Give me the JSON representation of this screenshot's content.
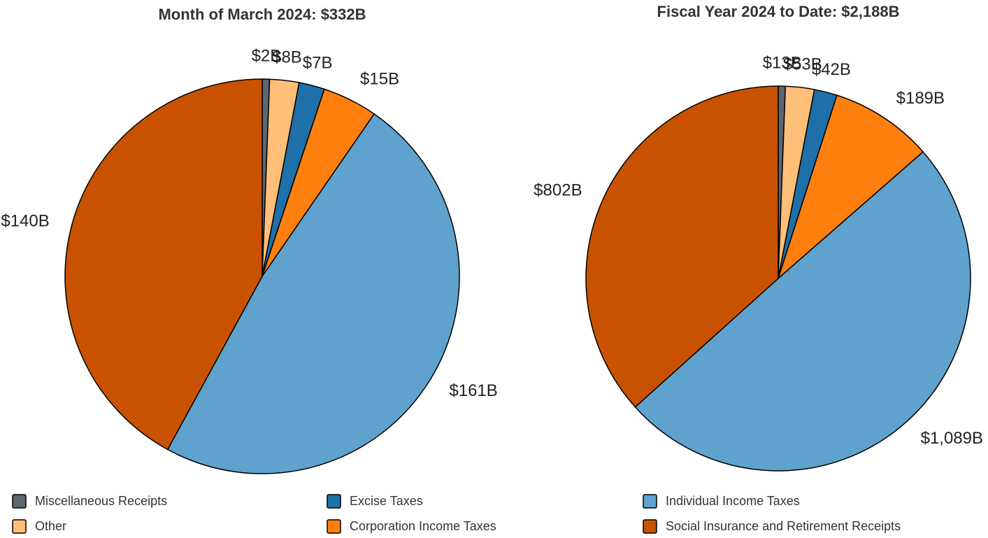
{
  "chart_data": [
    {
      "type": "pie",
      "title": "Month of March 2024: $332B",
      "categories": [
        "Miscellaneous Receipts",
        "Other",
        "Excise Taxes",
        "Corporation Income Taxes",
        "Individual Income Taxes",
        "Social Insurance and Retirement Receipts"
      ],
      "colors": [
        "#5f6670",
        "#ffbf79",
        "#1f6fa8",
        "#ff7f0e",
        "#5fa2cd",
        "#c85200"
      ],
      "values": [
        2,
        8,
        7,
        15,
        161,
        140
      ],
      "value_labels": [
        "$2B",
        "$8B",
        "$7B",
        "$15B",
        "$161B",
        "$140B"
      ]
    },
    {
      "type": "pie",
      "title": "Fiscal Year 2024 to Date: $2,188B",
      "values": [
        13,
        53,
        42,
        189,
        1089,
        802
      ],
      "value_labels": [
        "$13B",
        "$53B",
        "$42B",
        "$189B",
        "$1,089B",
        "$802B"
      ]
    }
  ]
}
